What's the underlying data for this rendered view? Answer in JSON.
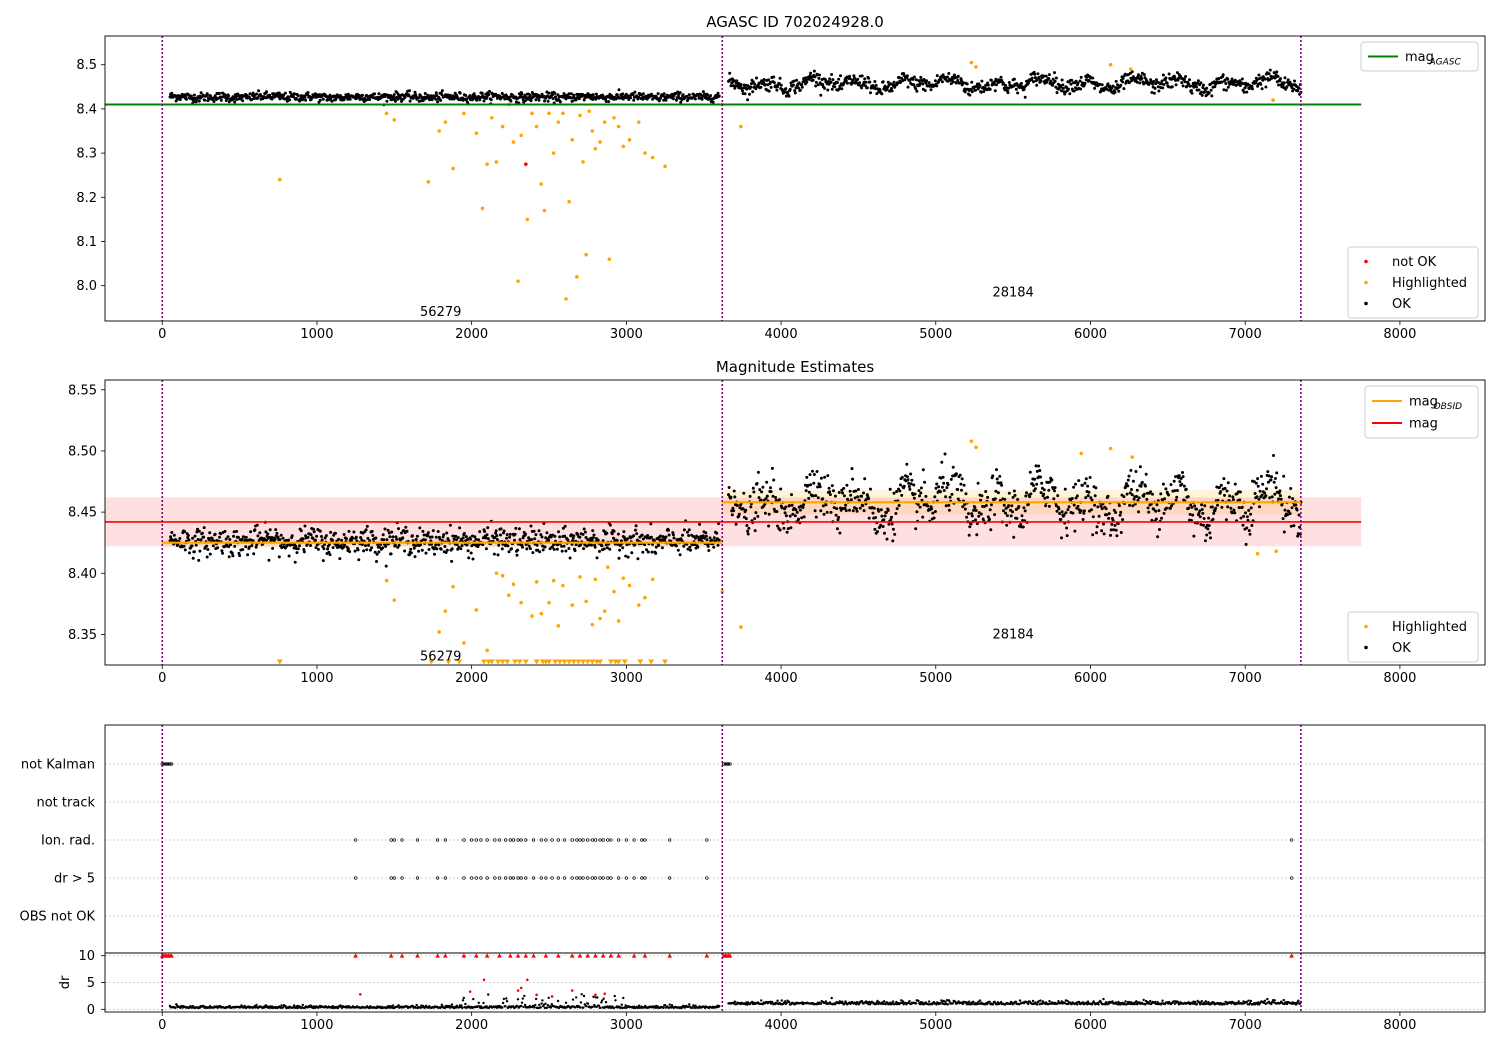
{
  "chart_data": [
    {
      "type": "scatter",
      "title": "AGASC ID 702024928.0",
      "xlim": [
        -370,
        8550
      ],
      "ylim": [
        7.92,
        8.565
      ],
      "xticks": [
        0,
        1000,
        2000,
        3000,
        4000,
        5000,
        6000,
        7000,
        8000
      ],
      "yticks": [
        8.0,
        8.1,
        8.2,
        8.3,
        8.4,
        8.5
      ],
      "ytick_format": 1,
      "vlines": [
        0,
        3620,
        7360
      ],
      "annotations": [
        {
          "text": "56279",
          "x": 1800,
          "y": 7.94
        },
        {
          "text": "28184",
          "x": 5500,
          "y": 7.985
        }
      ],
      "hlines": [
        {
          "name": "mag_AGASC",
          "y": 8.41,
          "x0": -370,
          "x1": 7750,
          "color": "#008000"
        }
      ],
      "segments": [
        {
          "x0": 50,
          "x1": 3600,
          "center": 8.427,
          "spread": 0.005,
          "wave": 0.002
        },
        {
          "x0": 3660,
          "x1": 7360,
          "center": 8.457,
          "spread": 0.008,
          "wave": 0.016
        }
      ],
      "legend_upper": [
        {
          "label": "mag",
          "sub": "AGASC",
          "color": "#008000",
          "kind": "line"
        }
      ],
      "legend_lower": [
        {
          "label": "not OK",
          "color": "#ff0000",
          "kind": "dot"
        },
        {
          "label": "Highlighted",
          "color": "#ffa500",
          "kind": "dot"
        },
        {
          "label": "OK",
          "color": "#000000",
          "kind": "dot"
        }
      ],
      "series": [
        {
          "name": "not OK",
          "color": "#ff0000",
          "x": [
            2350
          ],
          "y": [
            8.275
          ]
        },
        {
          "name": "Highlighted",
          "color": "#ffa500",
          "x": [
            760,
            1450,
            1500,
            1720,
            1790,
            1830,
            1880,
            1950,
            2030,
            2070,
            2100,
            2130,
            2160,
            2200,
            2240,
            2270,
            2300,
            2320,
            2360,
            2390,
            2420,
            2450,
            2470,
            2500,
            2530,
            2560,
            2590,
            2610,
            2630,
            2650,
            2680,
            2700,
            2720,
            2740,
            2760,
            2780,
            2800,
            2830,
            2860,
            2890,
            2920,
            2950,
            2980,
            3020,
            3080,
            3120,
            3170,
            3250,
            3620,
            3740,
            5230,
            5260,
            6130,
            6260,
            7180
          ],
          "y": [
            8.24,
            8.39,
            8.375,
            8.235,
            8.35,
            8.37,
            8.265,
            8.39,
            8.345,
            8.175,
            8.275,
            8.38,
            8.28,
            8.36,
            8.41,
            8.325,
            8.01,
            8.34,
            8.15,
            8.39,
            8.36,
            8.23,
            8.17,
            8.39,
            8.3,
            8.37,
            8.39,
            7.97,
            8.19,
            8.33,
            8.02,
            8.385,
            8.28,
            8.07,
            8.395,
            8.35,
            8.31,
            8.325,
            8.37,
            8.06,
            8.38,
            8.36,
            8.315,
            8.33,
            8.37,
            8.3,
            8.29,
            8.27,
            8.41,
            8.36,
            8.505,
            8.495,
            8.5,
            8.49,
            8.42
          ]
        },
        {
          "name": "OK",
          "color": "#000000"
        }
      ]
    },
    {
      "type": "scatter",
      "title": "Magnitude Estimates",
      "xlim": [
        -370,
        8550
      ],
      "ylim": [
        8.325,
        8.558
      ],
      "xticks": [
        0,
        1000,
        2000,
        3000,
        4000,
        5000,
        6000,
        7000,
        8000
      ],
      "yticks": [
        8.35,
        8.4,
        8.45,
        8.5,
        8.55
      ],
      "ytick_format": 2,
      "vlines": [
        0,
        3620,
        7360
      ],
      "annotations": [
        {
          "text": "56279",
          "x": 1800,
          "y": 8.332
        },
        {
          "text": "28184",
          "x": 5500,
          "y": 8.35
        }
      ],
      "band": {
        "y0": 8.422,
        "y1": 8.462,
        "x0": -370,
        "x1": 7750,
        "color": "#ffdddd"
      },
      "obsid_bands": [
        {
          "x0": 0,
          "x1": 3620,
          "y0": 8.421,
          "y1": 8.428
        },
        {
          "x0": 3620,
          "x1": 7360,
          "y0": 8.448,
          "y1": 8.468
        }
      ],
      "hlines": [
        {
          "name": "mag",
          "y": 8.442,
          "x0": -370,
          "x1": 7750,
          "color": "#ff0000"
        }
      ],
      "steps": [
        {
          "name": "mag_OBSID",
          "color": "#ffa500",
          "parts": [
            {
              "x0": 0,
              "x1": 3620,
              "y": 8.425
            },
            {
              "x0": 3620,
              "x1": 7360,
              "y": 8.458
            }
          ]
        }
      ],
      "segments": [
        {
          "x0": 50,
          "x1": 3600,
          "center": 8.426,
          "spread": 0.0055,
          "wave": 0.002
        },
        {
          "x0": 3660,
          "x1": 7360,
          "center": 8.458,
          "spread": 0.009,
          "wave": 0.018
        }
      ],
      "legend_upper": [
        {
          "label": "mag",
          "sub": "OBSID",
          "color": "#ffa500",
          "kind": "line"
        },
        {
          "label": "mag",
          "sub": "",
          "color": "#ff0000",
          "kind": "line"
        }
      ],
      "legend_lower": [
        {
          "label": "Highlighted",
          "color": "#ffa500",
          "kind": "dot"
        },
        {
          "label": "OK",
          "color": "#000000",
          "kind": "dot"
        }
      ],
      "series": [
        {
          "name": "Highlighted",
          "color": "#ffa500",
          "x": [
            1450,
            1500,
            1790,
            1830,
            1880,
            1950,
            2030,
            2100,
            2160,
            2200,
            2240,
            2270,
            2320,
            2390,
            2420,
            2450,
            2500,
            2530,
            2560,
            2590,
            2650,
            2700,
            2740,
            2780,
            2800,
            2830,
            2860,
            2880,
            2920,
            2950,
            2980,
            3020,
            3080,
            3120,
            3170,
            3620,
            3740,
            5230,
            5260,
            5940,
            6130,
            6270,
            7080,
            7200
          ],
          "y": [
            8.394,
            8.378,
            8.352,
            8.369,
            8.389,
            8.343,
            8.37,
            8.337,
            8.4,
            8.398,
            8.382,
            8.391,
            8.376,
            8.365,
            8.393,
            8.367,
            8.376,
            8.394,
            8.357,
            8.39,
            8.374,
            8.397,
            8.377,
            8.358,
            8.395,
            8.363,
            8.369,
            8.405,
            8.385,
            8.361,
            8.396,
            8.39,
            8.374,
            8.38,
            8.395,
            8.385,
            8.356,
            8.508,
            8.503,
            8.498,
            8.502,
            8.495,
            8.416,
            8.418
          ]
        },
        {
          "name": "Highlighted (below range)",
          "color": "#ffa500",
          "x": [
            760,
            1740,
            1850,
            1920,
            2080,
            2110,
            2130,
            2170,
            2200,
            2230,
            2280,
            2310,
            2350,
            2420,
            2460,
            2480,
            2500,
            2540,
            2570,
            2600,
            2630,
            2660,
            2690,
            2720,
            2750,
            2780,
            2810,
            2830,
            2900,
            2930,
            2950,
            2990,
            3090,
            3160,
            3250
          ],
          "y": [
            8.327,
            8.327,
            8.327,
            8.327,
            8.327,
            8.327,
            8.327,
            8.327,
            8.327,
            8.327,
            8.327,
            8.327,
            8.327,
            8.327,
            8.327,
            8.327,
            8.327,
            8.327,
            8.327,
            8.327,
            8.327,
            8.327,
            8.327,
            8.327,
            8.327,
            8.327,
            8.327,
            8.327,
            8.327,
            8.327,
            8.327,
            8.327,
            8.327,
            8.327,
            8.327
          ]
        },
        {
          "name": "OK",
          "color": "#000000"
        }
      ]
    },
    {
      "type": "scatter",
      "title": "",
      "xlim": [
        -370,
        8550
      ],
      "ylabel": "dr",
      "xticks": [
        0,
        1000,
        2000,
        3000,
        4000,
        5000,
        6000,
        7000,
        8000
      ],
      "vlines": [
        0,
        3620,
        7360
      ],
      "flag_rows": [
        "not Kalman",
        "not track",
        "Ion. rad.",
        "dr > 5",
        "OBS not OK"
      ],
      "flag_points": {
        "not Kalman": [
          0,
          10,
          20,
          30,
          40,
          50,
          60,
          3630,
          3640,
          3650,
          3660,
          3670
        ],
        "not track": [],
        "Ion. rad.": [
          1250,
          1480,
          1500,
          1550,
          1650,
          1780,
          1830,
          1950,
          2000,
          2030,
          2060,
          2100,
          2150,
          2180,
          2220,
          2250,
          2270,
          2300,
          2320,
          2350,
          2400,
          2450,
          2480,
          2520,
          2560,
          2600,
          2650,
          2680,
          2700,
          2720,
          2750,
          2780,
          2800,
          2830,
          2850,
          2880,
          2900,
          2950,
          3000,
          3050,
          3100,
          3120,
          3280,
          3520,
          7300
        ],
        "dr > 5": [
          1250,
          1480,
          1500,
          1550,
          1650,
          1780,
          1830,
          1950,
          2000,
          2030,
          2060,
          2100,
          2150,
          2180,
          2220,
          2250,
          2270,
          2300,
          2320,
          2350,
          2400,
          2450,
          2480,
          2520,
          2560,
          2600,
          2650,
          2680,
          2700,
          2720,
          2750,
          2780,
          2800,
          2830,
          2850,
          2880,
          2900,
          2950,
          3000,
          3050,
          3100,
          3120,
          3280,
          3520,
          7300
        ],
        "OBS not OK": []
      },
      "dr_ylim": [
        -0.5,
        10.5
      ],
      "dr_yticks": [
        0,
        5,
        10
      ],
      "dr_clipped_x": [
        0,
        10,
        20,
        30,
        40,
        50,
        60,
        1250,
        1480,
        1550,
        1650,
        1780,
        1830,
        1950,
        2030,
        2100,
        2180,
        2250,
        2300,
        2350,
        2400,
        2480,
        2560,
        2650,
        2700,
        2750,
        2800,
        2850,
        2900,
        2950,
        3050,
        3120,
        3280,
        3520,
        3630,
        3640,
        3650,
        3660,
        3670,
        7300
      ],
      "dr_highlight": {
        "x": [
          1280,
          1990,
          2080,
          2300,
          2320,
          2360,
          2420,
          2520,
          2650,
          2800,
          2860
        ],
        "y": [
          2.8,
          3.3,
          5.5,
          3.5,
          4.0,
          5.5,
          2.7,
          2.4,
          3.5,
          2.7,
          2.9
        ]
      },
      "dr_segments": [
        {
          "x0": 50,
          "x1": 3600,
          "base": 0.25,
          "spread": 0.35
        },
        {
          "x0": 3660,
          "x1": 7360,
          "base": 0.9,
          "spread": 0.55
        }
      ]
    }
  ]
}
